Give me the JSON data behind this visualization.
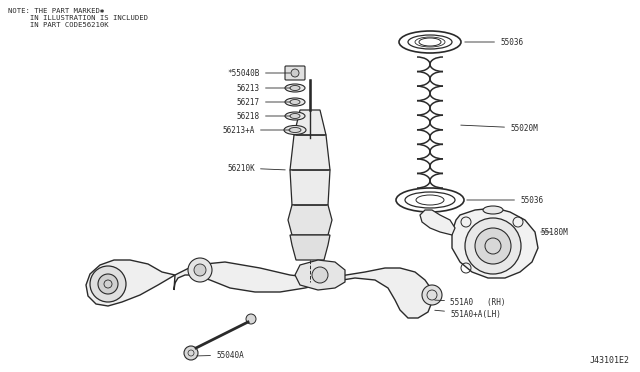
{
  "bg_color": "#ffffff",
  "line_color": "#2a2a2a",
  "text_color": "#2a2a2a",
  "fig_width": 6.4,
  "fig_height": 3.72,
  "dpi": 100,
  "note_line1": "NOTE: THE PART MARKED✱",
  "note_line2": "     IN ILLUSTRATION IS INCLUDED",
  "note_line3": "     IN PART CODE56210K",
  "diagram_id": "J43101E2",
  "font_size_note": 5.2,
  "font_size_label": 5.5
}
